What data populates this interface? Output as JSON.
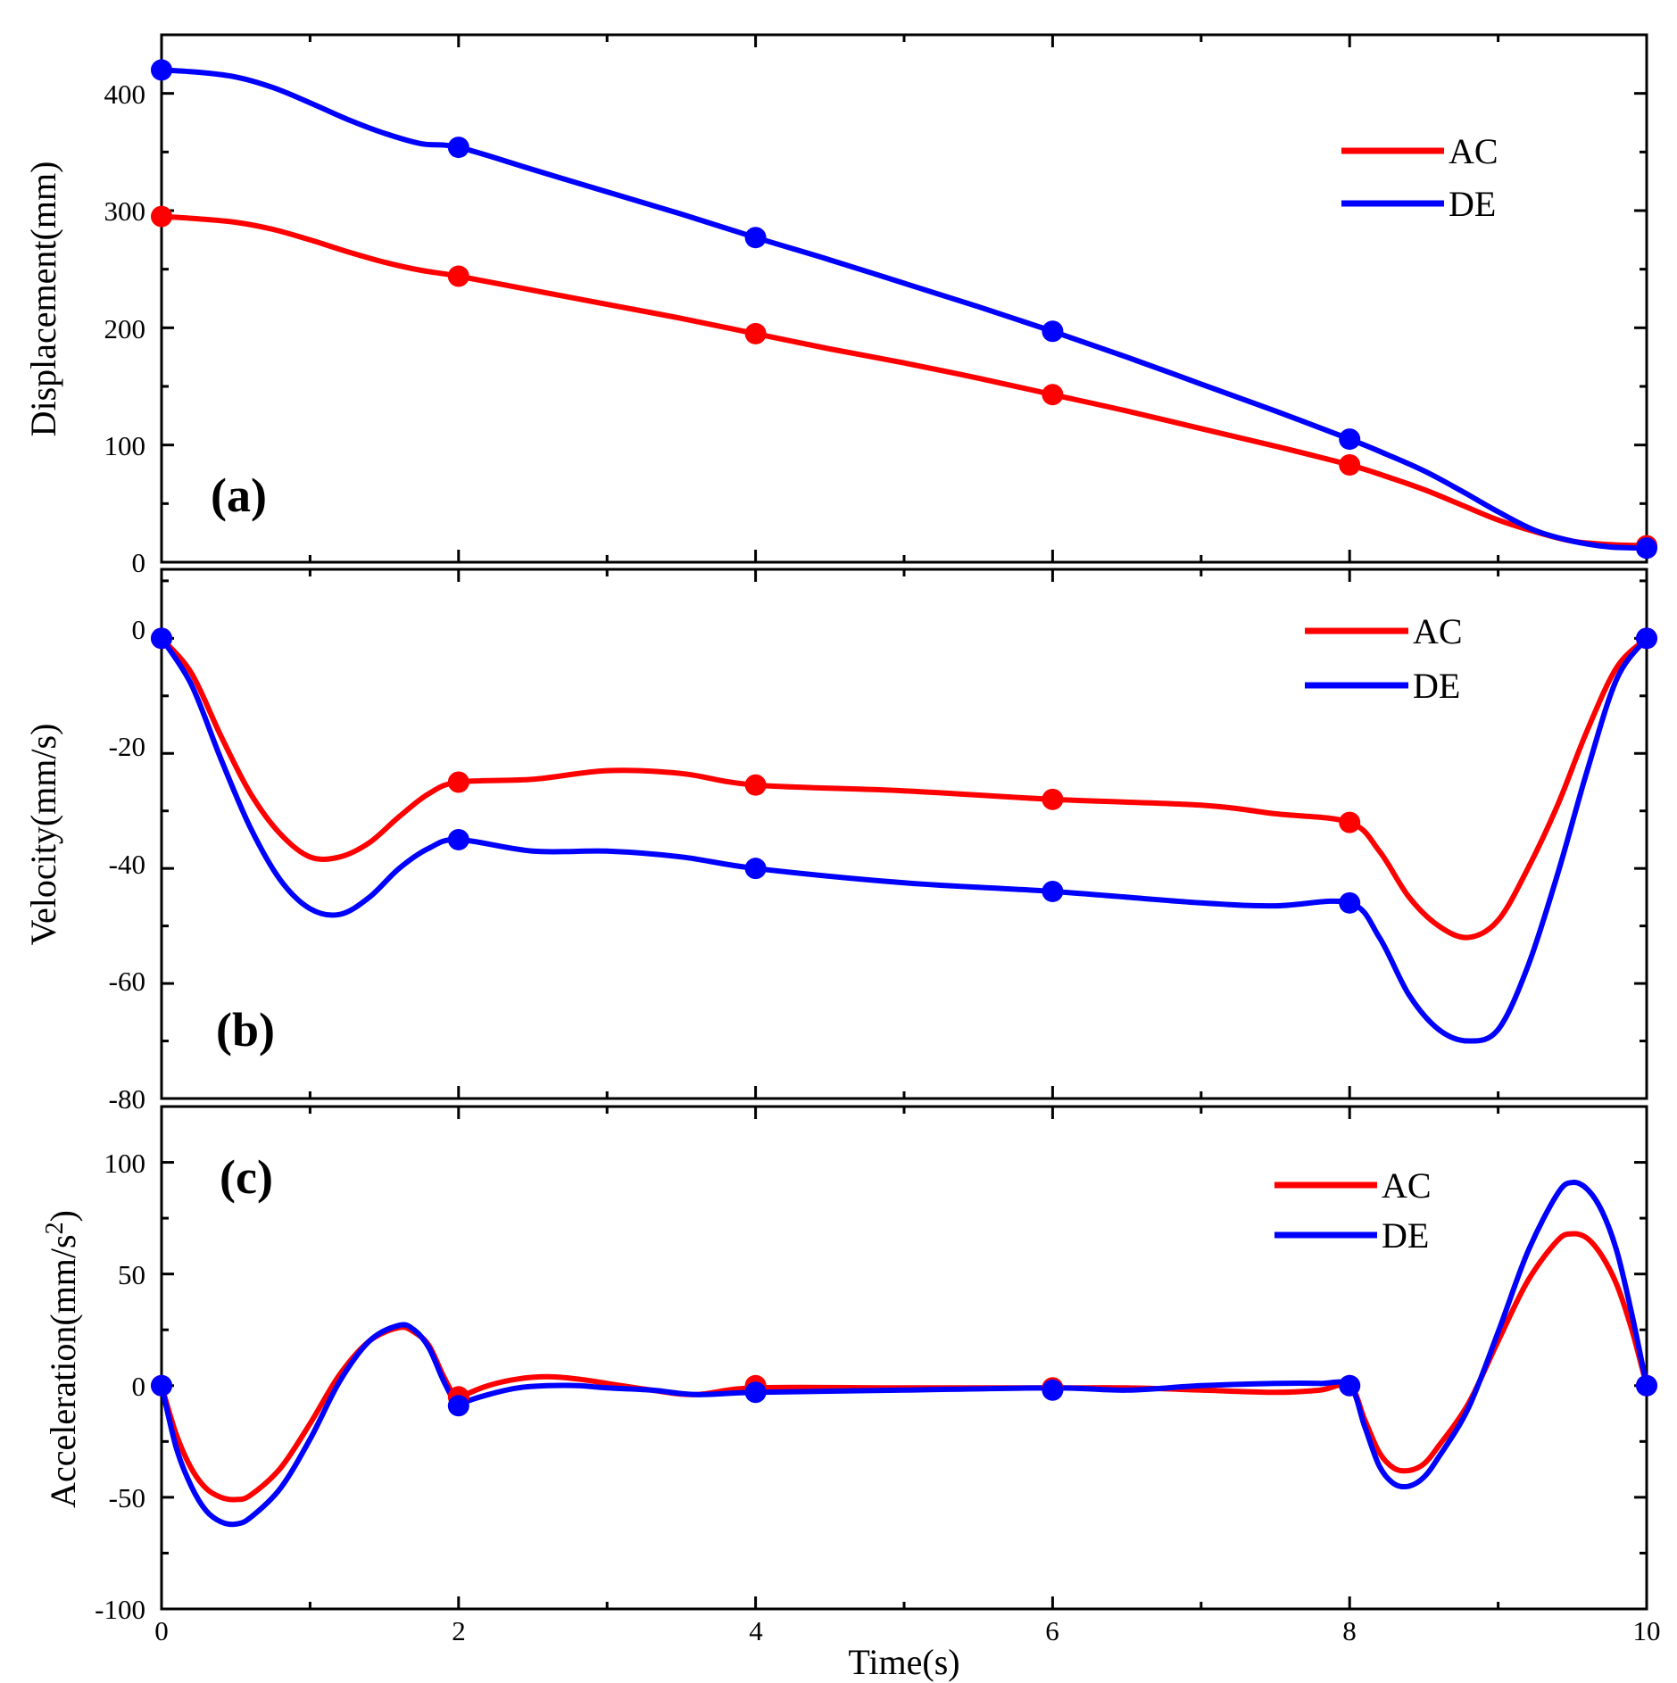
{
  "chart_data": [
    {
      "type": "line",
      "panel_label": "(a)",
      "ylabel": "Displacement(mm)",
      "xlim": [
        0,
        10
      ],
      "ylim": [
        0,
        450
      ],
      "y_ticks": [
        0,
        100,
        200,
        300,
        400
      ],
      "legend": "top-right",
      "series": [
        {
          "name": "AC",
          "color": "#ff0000",
          "x": [
            0,
            0.25,
            0.5,
            0.75,
            1,
            1.25,
            1.5,
            1.75,
            2,
            2.5,
            3,
            3.5,
            4,
            4.5,
            5,
            5.5,
            6,
            6.5,
            7,
            7.5,
            8,
            8.25,
            8.5,
            8.75,
            9,
            9.25,
            9.5,
            9.75,
            10
          ],
          "y": [
            295,
            293,
            290,
            284,
            275,
            265,
            256,
            249,
            244,
            232,
            220,
            208,
            195,
            182,
            170,
            157,
            143,
            129,
            114,
            99,
            83,
            73,
            62,
            49,
            36,
            26,
            18,
            15,
            14
          ],
          "markers_x": [
            0,
            2,
            4,
            6,
            8,
            10
          ],
          "markers_y": [
            295,
            244,
            195,
            143,
            83,
            14
          ]
        },
        {
          "name": "DE",
          "color": "#0000ff",
          "x": [
            0,
            0.25,
            0.5,
            0.75,
            1,
            1.25,
            1.5,
            1.75,
            2,
            2.5,
            3,
            3.5,
            4,
            4.5,
            5,
            5.5,
            6,
            6.5,
            7,
            7.5,
            8,
            8.25,
            8.5,
            8.75,
            9,
            9.25,
            9.5,
            9.75,
            10
          ],
          "y": [
            420,
            418,
            414,
            405,
            392,
            378,
            366,
            357,
            354,
            335,
            316,
            297,
            277,
            258,
            238,
            218,
            197,
            175,
            152,
            129,
            105,
            92,
            78,
            61,
            43,
            27,
            18,
            13,
            12
          ],
          "markers_x": [
            0,
            2,
            4,
            6,
            8,
            10
          ],
          "markers_y": [
            420,
            354,
            277,
            197,
            105,
            12
          ]
        }
      ]
    },
    {
      "type": "line",
      "panel_label": "(b)",
      "ylabel": "Velocity(mm/s)",
      "xlim": [
        0,
        10
      ],
      "ylim": [
        -80,
        12
      ],
      "y_ticks": [
        -80,
        -60,
        -40,
        -20,
        0
      ],
      "legend": "top-right",
      "series": [
        {
          "name": "AC",
          "color": "#ff0000",
          "x": [
            0,
            0.2,
            0.4,
            0.6,
            0.8,
            1,
            1.2,
            1.4,
            1.6,
            1.8,
            2,
            2.5,
            3,
            3.5,
            4,
            5,
            6,
            7,
            7.5,
            8,
            8.2,
            8.4,
            8.6,
            8.8,
            9,
            9.2,
            9.4,
            9.6,
            9.8,
            10
          ],
          "y": [
            0,
            -6,
            -17,
            -27,
            -34,
            -38,
            -38,
            -35.5,
            -31,
            -27,
            -25,
            -24.5,
            -23,
            -23.5,
            -25.5,
            -26.5,
            -28,
            -29,
            -30.5,
            -32,
            -37,
            -45,
            -50,
            -52,
            -49,
            -40,
            -29,
            -16,
            -5,
            0
          ],
          "markers_x": [
            0,
            2,
            4,
            6,
            8,
            10
          ],
          "markers_y": [
            0,
            -25,
            -25.5,
            -28,
            -32,
            0
          ]
        },
        {
          "name": "DE",
          "color": "#0000ff",
          "x": [
            0,
            0.2,
            0.4,
            0.6,
            0.8,
            1,
            1.2,
            1.4,
            1.6,
            1.8,
            2,
            2.5,
            3,
            3.5,
            4,
            5,
            6,
            7,
            7.5,
            8,
            8.2,
            8.4,
            8.6,
            8.8,
            9,
            9.2,
            9.4,
            9.6,
            9.8,
            10
          ],
          "y": [
            0,
            -8,
            -21,
            -33,
            -42,
            -47,
            -48,
            -45,
            -40,
            -36.5,
            -35,
            -37,
            -37,
            -38,
            -40,
            -42.5,
            -44,
            -46,
            -46.5,
            -46,
            -52,
            -62,
            -68,
            -70,
            -68,
            -57,
            -41,
            -23,
            -7,
            0
          ],
          "markers_x": [
            0,
            2,
            4,
            6,
            8,
            10
          ],
          "markers_y": [
            0,
            -35,
            -40,
            -44,
            -46,
            0
          ]
        }
      ]
    },
    {
      "type": "line",
      "panel_label": "(c)",
      "ylabel": "Acceleration(mm/s²)",
      "xlabel": "Time(s)",
      "xlim": [
        0,
        10
      ],
      "ylim": [
        -100,
        125
      ],
      "y_ticks": [
        -100,
        -50,
        0,
        50,
        100
      ],
      "x_ticks": [
        0,
        2,
        4,
        6,
        8,
        10
      ],
      "legend": "top-right",
      "series": [
        {
          "name": "AC",
          "color": "#ff0000",
          "x": [
            0,
            0.1,
            0.2,
            0.3,
            0.4,
            0.5,
            0.6,
            0.8,
            1,
            1.2,
            1.4,
            1.6,
            1.7,
            1.8,
            1.9,
            2,
            2.02,
            2.2,
            2.4,
            2.6,
            2.8,
            3,
            3.3,
            3.6,
            4,
            5,
            6,
            6.5,
            7,
            7.5,
            7.8,
            8,
            8.1,
            8.2,
            8.3,
            8.4,
            8.5,
            8.6,
            8.8,
            9,
            9.2,
            9.4,
            9.5,
            9.6,
            9.7,
            9.8,
            9.9,
            10
          ],
          "y": [
            0,
            -22,
            -37,
            -46,
            -50,
            -51,
            -49,
            -37,
            -17,
            5,
            20,
            26,
            24,
            18,
            4,
            -8,
            -5,
            0,
            3,
            4,
            3,
            1,
            -2,
            -4,
            -1,
            -1,
            -1,
            -1,
            -2,
            -3,
            -2,
            0,
            -15,
            -30,
            -37,
            -38,
            -35,
            -27,
            -8,
            20,
            47,
            65,
            68,
            66,
            58,
            45,
            25,
            0
          ],
          "markers_x": [
            0,
            2,
            4,
            6,
            8,
            10
          ],
          "markers_y": [
            0,
            -5,
            0,
            -1,
            0,
            0
          ]
        },
        {
          "name": "DE",
          "color": "#0000ff",
          "x": [
            0,
            0.1,
            0.2,
            0.3,
            0.4,
            0.5,
            0.6,
            0.8,
            1,
            1.2,
            1.4,
            1.6,
            1.7,
            1.8,
            1.9,
            2,
            2.02,
            2.2,
            2.4,
            2.6,
            2.8,
            3,
            3.3,
            3.6,
            4,
            5,
            6,
            6.5,
            7,
            7.5,
            7.8,
            8,
            8.1,
            8.2,
            8.3,
            8.4,
            8.5,
            8.6,
            8.8,
            9,
            9.2,
            9.4,
            9.5,
            9.6,
            9.7,
            9.8,
            9.9,
            10
          ],
          "y": [
            0,
            -28,
            -45,
            -56,
            -61,
            -62,
            -59,
            -46,
            -24,
            2,
            20,
            27,
            25,
            17,
            2,
            -10,
            -8,
            -4,
            -1,
            0,
            0,
            -1,
            -2,
            -4,
            -3,
            -2,
            -1,
            -2,
            0,
            1,
            1,
            0,
            -18,
            -36,
            -44,
            -45,
            -41,
            -32,
            -10,
            24,
            60,
            86,
            91,
            88,
            78,
            60,
            32,
            0
          ],
          "markers_x": [
            0,
            2,
            4,
            6,
            8,
            10
          ],
          "markers_y": [
            0,
            -9,
            -3,
            -2,
            0,
            0
          ]
        }
      ]
    }
  ],
  "panels": [
    {
      "tag": "(a)",
      "y_title": "Displacement(mm)",
      "y_tick_labels": [
        "0",
        "100",
        "200",
        "300",
        "400"
      ],
      "legend": [
        {
          "label": "AC",
          "color": "#ff0000"
        },
        {
          "label": "DE",
          "color": "#0000ff"
        }
      ]
    },
    {
      "tag": "(b)",
      "y_title": "Velocity(mm/s)",
      "y_tick_labels": [
        "-80",
        "-60",
        "-40",
        "-20",
        "0"
      ],
      "legend": [
        {
          "label": "AC",
          "color": "#ff0000"
        },
        {
          "label": "DE",
          "color": "#0000ff"
        }
      ]
    },
    {
      "tag": "(c)",
      "y_title_main": "Acceleration(mm/s",
      "y_title_sup": "2",
      "y_title_end": ")",
      "y_tick_labels": [
        "-100",
        "-50",
        "0",
        "50",
        "100"
      ],
      "legend": [
        {
          "label": "AC",
          "color": "#ff0000"
        },
        {
          "label": "DE",
          "color": "#0000ff"
        }
      ]
    }
  ],
  "x_axis": {
    "title": "Time(s)",
    "tick_labels": [
      "0",
      "2",
      "4",
      "6",
      "8",
      "10"
    ]
  }
}
